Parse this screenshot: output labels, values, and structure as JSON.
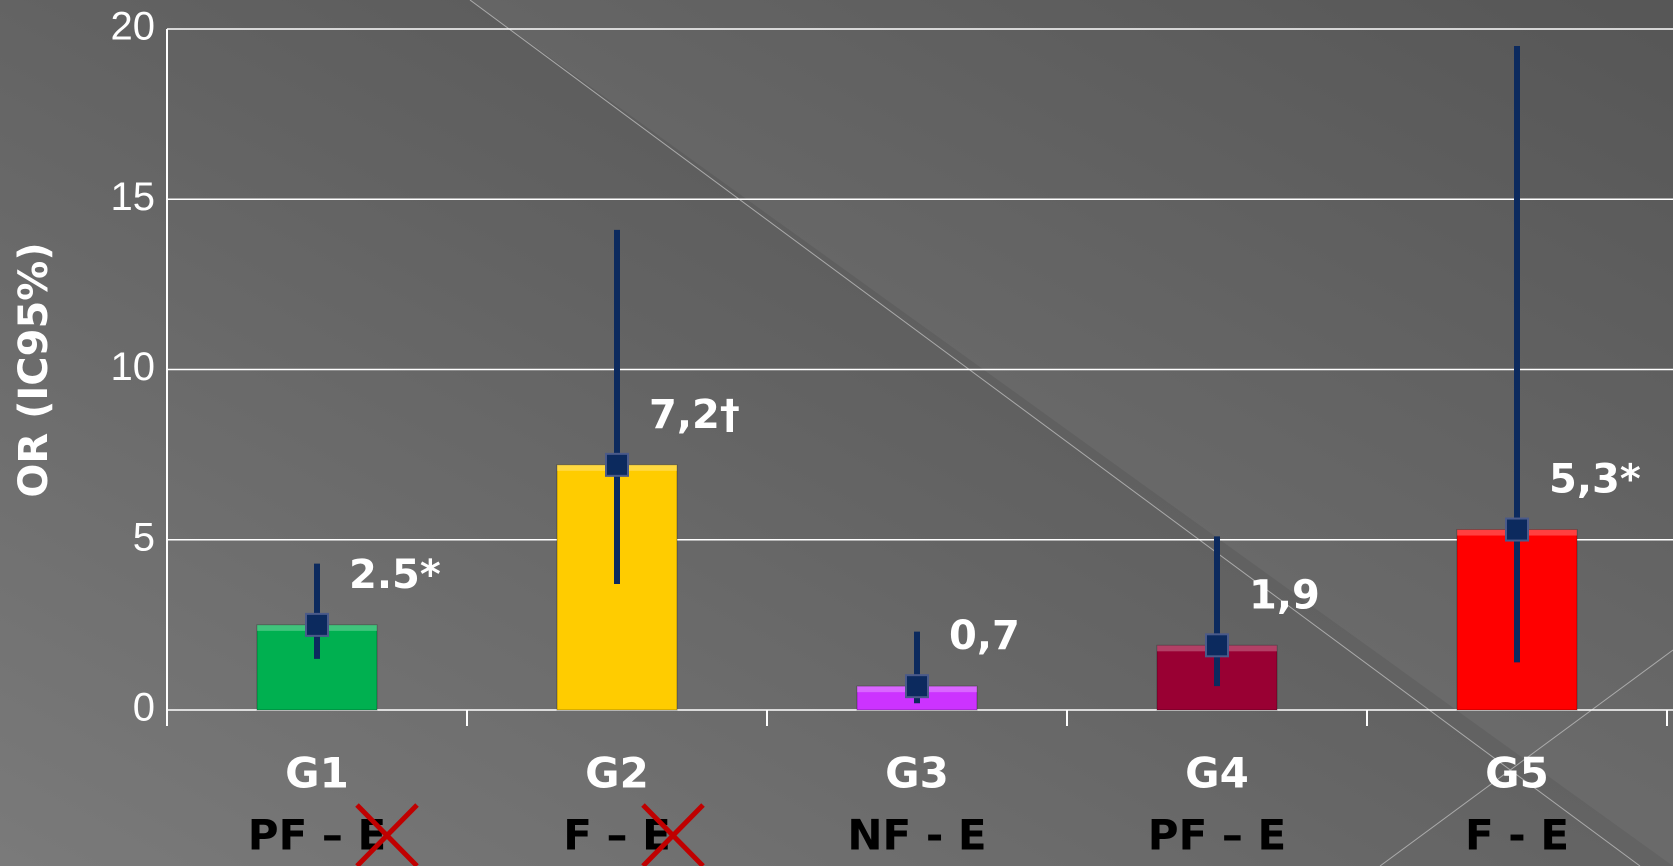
{
  "chart_data": {
    "type": "bar",
    "y_label": "OR (IC95%)",
    "categories": [
      "G1",
      "G2",
      "G3",
      "G4",
      "G5"
    ],
    "subcategories": [
      "PF – E",
      "F – E",
      "NF - E",
      "PF – E",
      "F - E"
    ],
    "values": [
      2.5,
      7.2,
      0.7,
      1.9,
      5.3
    ],
    "value_labels": [
      "2.5*",
      "7,2†",
      "0,7",
      "1,9",
      "5,3*"
    ],
    "ci_low": [
      1.5,
      3.7,
      0.2,
      0.7,
      1.4
    ],
    "ci_high": [
      4.3,
      14.1,
      2.3,
      5.1,
      19.5
    ],
    "colors": [
      "#00b050",
      "#ffcc00",
      "#cc33ff",
      "#990033",
      "#ff0000"
    ],
    "error_color": "#0c2a5e",
    "ylim": [
      0,
      20
    ],
    "yticks": [
      0,
      5,
      10,
      15,
      20
    ],
    "grid": true
  }
}
